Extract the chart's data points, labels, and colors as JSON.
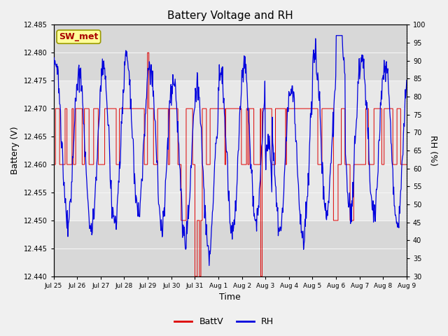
{
  "title": "Battery Voltage and RH",
  "xlabel": "Time",
  "ylabel_left": "Battery (V)",
  "ylabel_right": "RH (%)",
  "station_label": "SW_met",
  "ylim_left": [
    12.44,
    12.485
  ],
  "ylim_right": [
    30,
    100
  ],
  "yticks_left": [
    12.44,
    12.445,
    12.45,
    12.455,
    12.46,
    12.465,
    12.47,
    12.475,
    12.48,
    12.485
  ],
  "yticks_right": [
    30,
    35,
    40,
    45,
    50,
    55,
    60,
    65,
    70,
    75,
    80,
    85,
    90,
    95,
    100
  ],
  "xtick_labels": [
    "Jul 25",
    "Jul 26",
    "Jul 27",
    "Jul 28",
    "Jul 29",
    "Jul 30",
    "Jul 31",
    "Aug 1",
    "Aug 2",
    "Aug 3",
    "Aug 4",
    "Aug 5",
    "Aug 6",
    "Aug 7",
    "Aug 8",
    "Aug 9"
  ],
  "background_color": "#f0f0f0",
  "plot_bg_color": "#d8d8d8",
  "shaded_low": 12.45,
  "shaded_high": 12.475,
  "shaded_color": "#e8e8e8",
  "grid_color": "#f5f5f5",
  "line_color_battv": "#dd0000",
  "line_color_rh": "#0000dd",
  "legend_battv": "BattV",
  "legend_rh": "RH",
  "label_box_facecolor": "#ffff99",
  "label_box_edgecolor": "#999900",
  "label_text_color": "#aa0000"
}
